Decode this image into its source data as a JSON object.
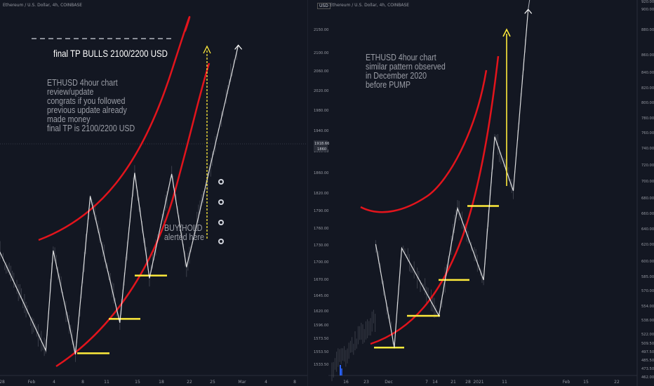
{
  "left": {
    "header": "Ethereum / U.S. Dollar, 4h, COINBASE",
    "title_text": "final TP BULLS 2100/2200 USD",
    "note_lines": [
      "ETHUSD 4hour chart",
      "review/update",
      "congrats if you followed",
      "previous update already",
      "made money",
      "final TP is 2100/2200 USD"
    ],
    "buy_lines": [
      "BUY/HOLD",
      "alerted here"
    ],
    "x_ticks": [
      "28",
      "Feb",
      "4",
      "8",
      "11",
      "15",
      "18",
      "22",
      "25",
      "Mar",
      "4",
      "8"
    ],
    "icons": [
      "circle-icon",
      "circle-icon",
      "circle-icon",
      "circle-icon"
    ]
  },
  "right": {
    "header": "Ethereum / U.S. Dollar, 4h, COINBASE",
    "usd_badge": "USD",
    "note_lines": [
      "ETHUSD 4hour chart",
      "similar pattern observed",
      "in December 2020",
      "before PUMP"
    ],
    "x_ticks": [
      "16",
      "23",
      "Dec",
      "7",
      "14",
      "21",
      "28",
      "2021",
      "11",
      "Feb",
      "15",
      "22"
    ]
  },
  "axis_mid": {
    "ticks": [
      "2150.00",
      "2100.00",
      "2060.00",
      "2020.00",
      "1980.00",
      "1940.00",
      "1900.00",
      "1860.00",
      "1820.00",
      "1790.00",
      "1760.00",
      "1730.00",
      "1700.00",
      "1670.00",
      "1645.00",
      "1620.00",
      "1596.00",
      "1573.50",
      "1553.50",
      "1533.50"
    ],
    "price_badge": "1918.66",
    "price_badge_sub": "1860"
  },
  "axis_right": {
    "ticks": [
      "900.00",
      "880.00",
      "860.00",
      "840.00",
      "820.00",
      "800.00",
      "780.00",
      "760.00",
      "740.00",
      "720.00",
      "700.00",
      "680.00",
      "660.00",
      "640.00",
      "620.00",
      "600.00",
      "585.00",
      "570.00",
      "554.00",
      "538.00",
      "522.00",
      "509.50",
      "497.50",
      "485.50",
      "473.50",
      "462.00"
    ],
    "top_tick": "920.00"
  },
  "colors": {
    "background": "#131722",
    "channel": "#e3141c",
    "support": "#ffeb3b",
    "target_arrow": "#ffeb3b",
    "zigzag": "#ffffff",
    "candles": "#5d606b"
  },
  "chart_data": [
    {
      "type": "line",
      "title": "Ethereum / U.S. Dollar, 4h, COINBASE",
      "xlabel": "",
      "ylabel": "",
      "x_ticks": [
        "28",
        "Feb",
        "4",
        "8",
        "11",
        "15",
        "18",
        "22",
        "25",
        "Mar",
        "4",
        "8"
      ],
      "y_ticks": [
        2150,
        2100,
        2060,
        2020,
        1980,
        1940,
        1900,
        1860,
        1820,
        1790,
        1760,
        1730,
        1700,
        1670,
        1645,
        1620,
        1596,
        1573.5,
        1553.5,
        1533.5
      ],
      "ylim": [
        1515,
        2185
      ],
      "zigzag_points": [
        {
          "x": "2021-01-27",
          "y": 1760
        },
        {
          "x": "2021-02-03",
          "y": 1560
        },
        {
          "x": "2021-02-04",
          "y": 1740
        },
        {
          "x": "2021-02-07",
          "y": 1553
        },
        {
          "x": "2021-02-09",
          "y": 1838
        },
        {
          "x": "2021-02-13",
          "y": 1610
        },
        {
          "x": "2021-02-15",
          "y": 1880
        },
        {
          "x": "2021-02-17",
          "y": 1690
        },
        {
          "x": "2021-02-20",
          "y": 1878
        },
        {
          "x": "2021-02-22",
          "y": 1710
        },
        {
          "x": "2021-02-23",
          "y": 1765
        },
        {
          "x": "2021-03-01",
          "y": 2110
        }
      ],
      "support_levels": [
        1555,
        1617,
        1695
      ],
      "target_label": "final TP BULLS 2100/2200 USD",
      "last_price": 1918.66
    },
    {
      "type": "line",
      "title": "Ethereum / U.S. Dollar, 4h, COINBASE",
      "xlabel": "",
      "ylabel": "",
      "x_ticks": [
        "16",
        "23",
        "Dec",
        "7",
        "14",
        "21",
        "28",
        "2021",
        "11",
        "Feb",
        "15",
        "22"
      ],
      "y_ticks": [
        920,
        900,
        880,
        860,
        840,
        820,
        800,
        780,
        760,
        740,
        720,
        700,
        680,
        660,
        640,
        620,
        600,
        585,
        570,
        554,
        538,
        522,
        509.5,
        497.5,
        485.5,
        473.5,
        462
      ],
      "ylim": [
        455,
        925
      ],
      "zigzag_points": [
        {
          "x": "2020-11-24",
          "y": 620
        },
        {
          "x": "2020-11-29",
          "y": 490
        },
        {
          "x": "2020-12-01",
          "y": 615
        },
        {
          "x": "2020-12-11",
          "y": 530
        },
        {
          "x": "2020-12-16",
          "y": 665
        },
        {
          "x": "2020-12-23",
          "y": 575
        },
        {
          "x": "2020-12-26",
          "y": 755
        },
        {
          "x": "2020-12-31",
          "y": 687
        },
        {
          "x": "2021-01-04",
          "y": 915
        }
      ],
      "support_levels": [
        490,
        530,
        575,
        668
      ],
      "note": "ETHUSD 4hour chart similar pattern observed in December 2020 before PUMP"
    }
  ]
}
